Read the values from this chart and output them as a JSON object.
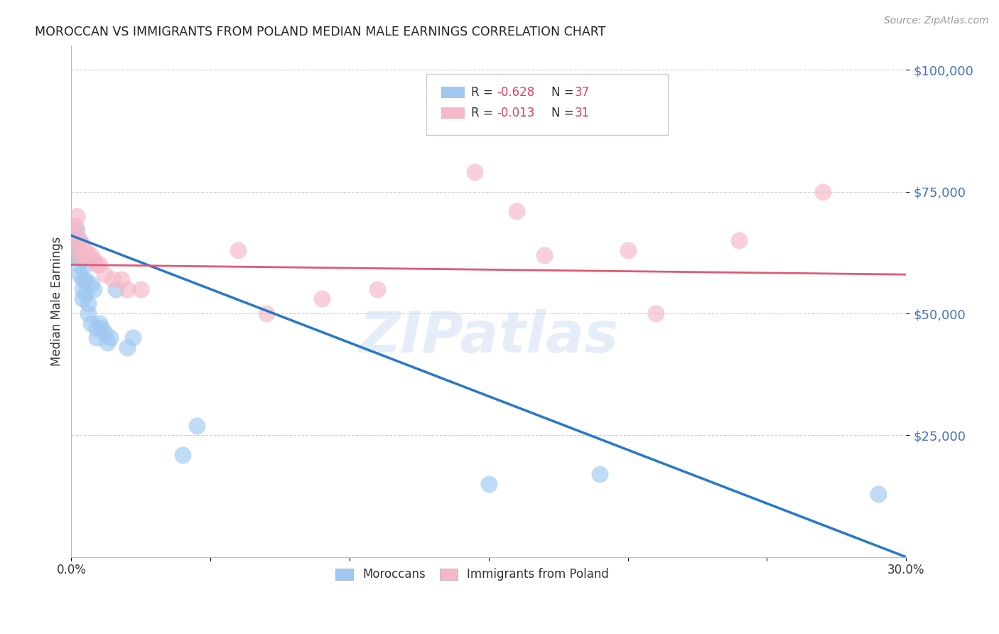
{
  "title": "MOROCCAN VS IMMIGRANTS FROM POLAND MEDIAN MALE EARNINGS CORRELATION CHART",
  "source": "Source: ZipAtlas.com",
  "ylabel": "Median Male Earnings",
  "ytick_values": [
    25000,
    50000,
    75000,
    100000
  ],
  "y_min": 0,
  "y_max": 105000,
  "x_min": 0.0,
  "x_max": 0.3,
  "legend_r1": "R = -0.628",
  "legend_n1": "N = 37",
  "legend_r2": "R = -0.013",
  "legend_n2": "N = 31",
  "blue_color": "#9EC8F0",
  "pink_color": "#F5B8C8",
  "line_blue": "#2878C8",
  "line_pink": "#E05878",
  "watermark": "ZIPatlas",
  "moroccans_x": [
    0.0005,
    0.001,
    0.001,
    0.0015,
    0.0015,
    0.002,
    0.002,
    0.0025,
    0.003,
    0.003,
    0.003,
    0.004,
    0.004,
    0.004,
    0.005,
    0.005,
    0.005,
    0.006,
    0.006,
    0.007,
    0.007,
    0.008,
    0.009,
    0.009,
    0.01,
    0.011,
    0.012,
    0.013,
    0.014,
    0.016,
    0.02,
    0.022,
    0.04,
    0.045,
    0.15,
    0.19,
    0.29
  ],
  "moroccans_y": [
    62000,
    65000,
    63000,
    65000,
    62000,
    67000,
    64000,
    60000,
    65000,
    62000,
    58000,
    57000,
    55000,
    53000,
    60000,
    57000,
    54000,
    52000,
    50000,
    56000,
    48000,
    55000,
    47000,
    45000,
    48000,
    47000,
    46000,
    44000,
    45000,
    55000,
    43000,
    45000,
    21000,
    27000,
    15000,
    17000,
    13000
  ],
  "poland_x": [
    0.0005,
    0.001,
    0.0015,
    0.002,
    0.002,
    0.003,
    0.003,
    0.004,
    0.004,
    0.005,
    0.006,
    0.007,
    0.008,
    0.009,
    0.01,
    0.012,
    0.015,
    0.018,
    0.02,
    0.025,
    0.06,
    0.07,
    0.09,
    0.11,
    0.145,
    0.16,
    0.17,
    0.2,
    0.21,
    0.24,
    0.27
  ],
  "poland_y": [
    64000,
    67000,
    68000,
    65000,
    70000,
    65000,
    62000,
    64000,
    62000,
    63000,
    62000,
    62000,
    61000,
    60000,
    60000,
    58000,
    57000,
    57000,
    55000,
    55000,
    63000,
    50000,
    53000,
    55000,
    79000,
    71000,
    62000,
    63000,
    50000,
    65000,
    75000
  ],
  "blue_trendline_x": [
    0.0,
    0.3
  ],
  "blue_trendline_y": [
    66000,
    0
  ],
  "pink_trendline_x": [
    0.0,
    0.3
  ],
  "pink_trendline_y": [
    60000,
    58000
  ],
  "xtick_positions": [
    0.0,
    0.05,
    0.1,
    0.15,
    0.2,
    0.25,
    0.3
  ]
}
